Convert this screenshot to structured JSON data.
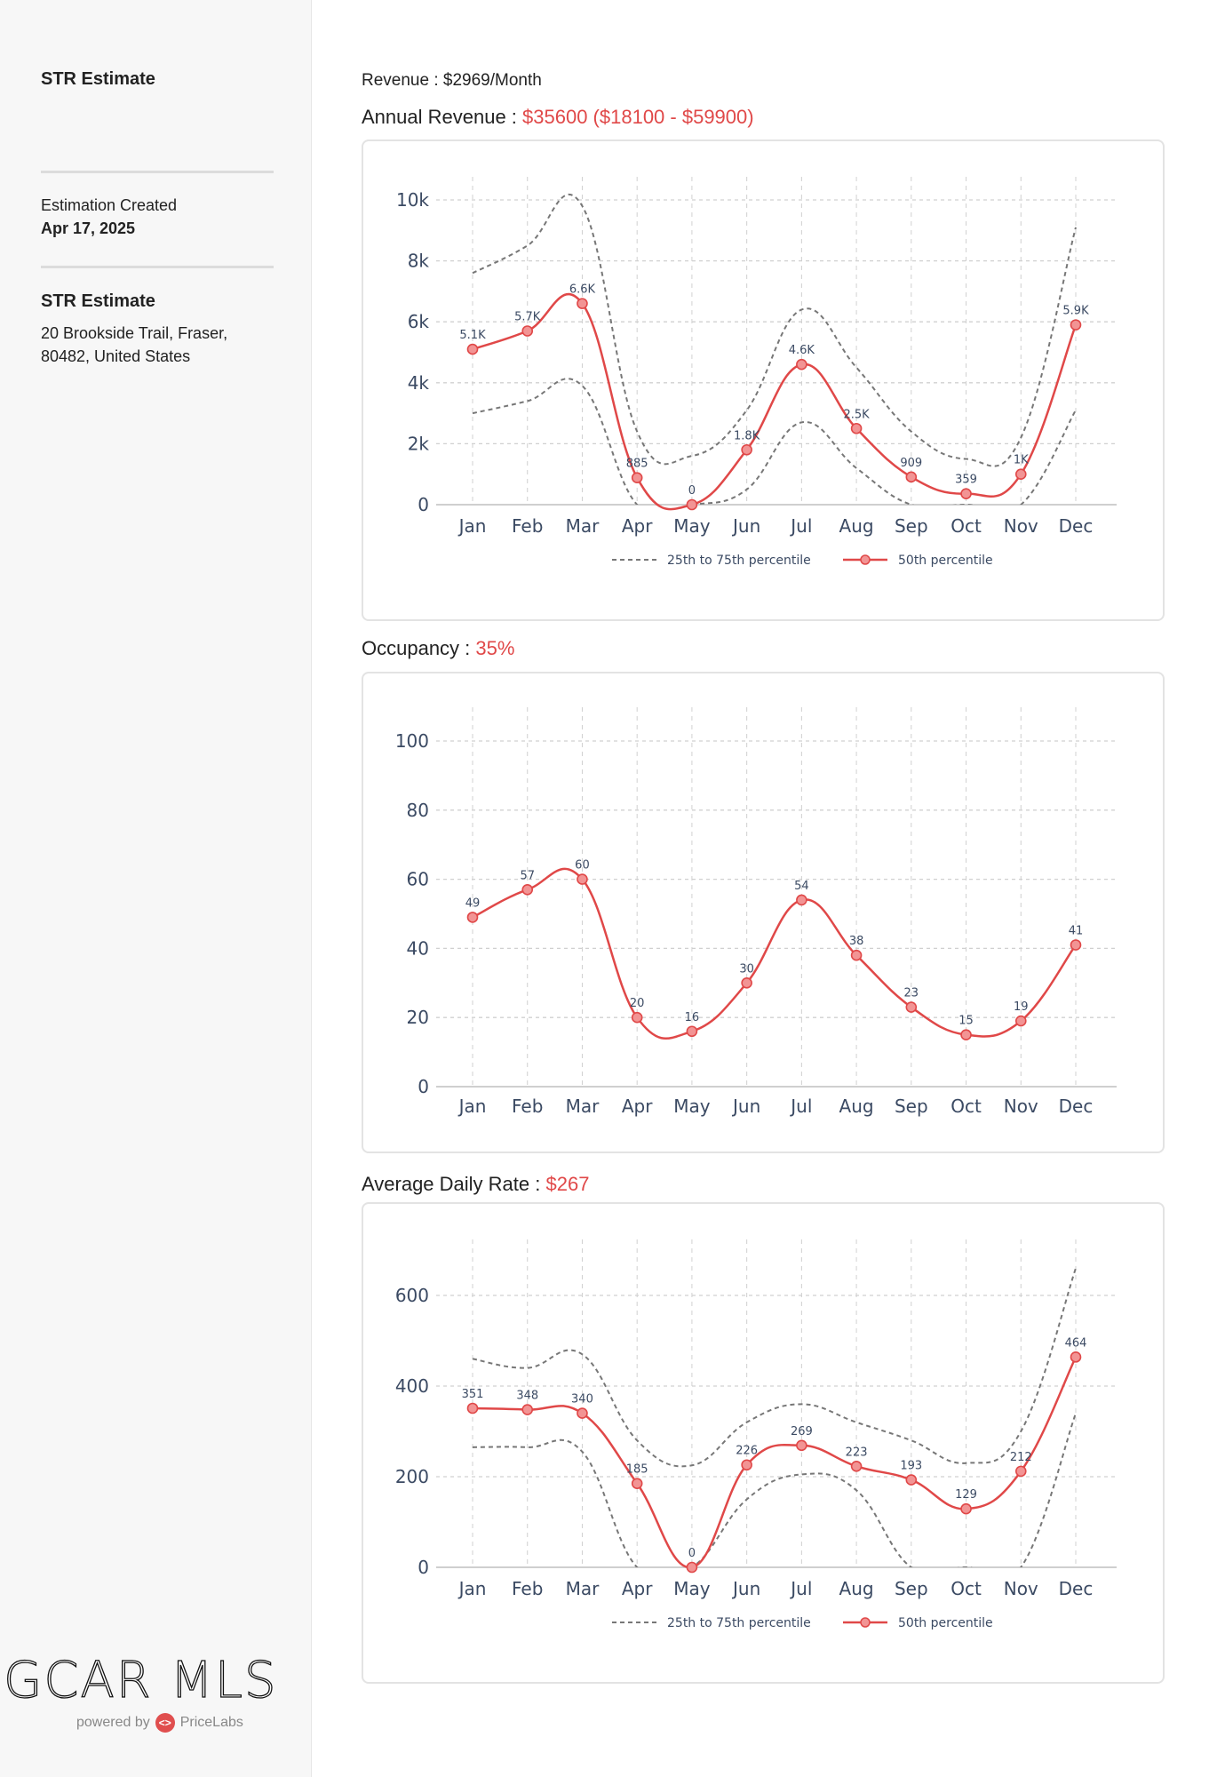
{
  "sidebar": {
    "title": "STR Estimate",
    "created_label": "Estimation Created",
    "created_date": "Apr 17, 2025",
    "property_title": "STR Estimate",
    "address_line1": "20 Brookside Trail, Fraser,",
    "address_line2": "80482, United States",
    "logo_text": "GCAR MLS",
    "powered_by": "powered by",
    "pricelabs": "PriceLabs"
  },
  "main": {
    "revenue_label": "Revenue : ",
    "revenue_value": "$2969/Month",
    "annual_label": "Annual Revenue : ",
    "annual_value": "$35600 ($18100 - $59900)",
    "occupancy_label": "Occupancy : ",
    "occupancy_value": "35%",
    "adr_label": "Average Daily Rate : ",
    "adr_value": "$267"
  },
  "colors": {
    "accent": "#e04848",
    "marker_fill": "#f29494",
    "band": "#777777",
    "grid": "#d0d0d0",
    "tick": "#3b4a63"
  },
  "chart_data": [
    {
      "type": "line",
      "title": "Annual Revenue",
      "categories": [
        "Jan",
        "Feb",
        "Mar",
        "Apr",
        "May",
        "Jun",
        "Jul",
        "Aug",
        "Sep",
        "Oct",
        "Nov",
        "Dec"
      ],
      "ylim": [
        0,
        10000
      ],
      "yticks": [
        0,
        2000,
        4000,
        6000,
        8000,
        10000
      ],
      "ytick_labels": [
        "0",
        "2k",
        "4k",
        "6k",
        "8k",
        "10k"
      ],
      "legend": [
        "25th to 75th percentile",
        "50th percentile"
      ],
      "legend_position": "bottom-center",
      "series": [
        {
          "name": "50th percentile",
          "values": [
            5100,
            5700,
            6600,
            885,
            0,
            1800,
            4600,
            2500,
            909,
            359,
            1000,
            5900
          ],
          "labels": [
            "5.1K",
            "5.7K",
            "6.6K",
            "885",
            "0",
            "1.8K",
            "4.6K",
            "2.5K",
            "909",
            "359",
            "1K",
            "5.9K"
          ]
        },
        {
          "name": "75th percentile",
          "values": [
            7600,
            8500,
            9800,
            2400,
            1600,
            3100,
            6400,
            4500,
            2400,
            1500,
            2200,
            9100
          ]
        },
        {
          "name": "25th percentile",
          "values": [
            3000,
            3400,
            3900,
            0,
            0,
            500,
            2700,
            1200,
            0,
            0,
            0,
            3100
          ]
        }
      ]
    },
    {
      "type": "line",
      "title": "Occupancy",
      "categories": [
        "Jan",
        "Feb",
        "Mar",
        "Apr",
        "May",
        "Jun",
        "Jul",
        "Aug",
        "Sep",
        "Oct",
        "Nov",
        "Dec"
      ],
      "ylim": [
        0,
        100
      ],
      "yticks": [
        0,
        20,
        40,
        60,
        80,
        100
      ],
      "ytick_labels": [
        "0",
        "20",
        "40",
        "60",
        "80",
        "100"
      ],
      "legend": [],
      "series": [
        {
          "name": "50th percentile",
          "values": [
            49,
            57,
            60,
            20,
            16,
            30,
            54,
            38,
            23,
            15,
            19,
            41
          ],
          "labels": [
            "49",
            "57",
            "60",
            "20",
            "16",
            "30",
            "54",
            "38",
            "23",
            "15",
            "19",
            "41"
          ]
        }
      ]
    },
    {
      "type": "line",
      "title": "Average Daily Rate",
      "categories": [
        "Jan",
        "Feb",
        "Mar",
        "Apr",
        "May",
        "Jun",
        "Jul",
        "Aug",
        "Sep",
        "Oct",
        "Nov",
        "Dec"
      ],
      "ylim": [
        0,
        600
      ],
      "yticks": [
        0,
        200,
        400,
        600
      ],
      "ytick_labels": [
        "0",
        "200",
        "400",
        "600"
      ],
      "legend": [
        "25th to 75th percentile",
        "50th percentile"
      ],
      "legend_position": "bottom-center",
      "series": [
        {
          "name": "50th percentile",
          "values": [
            351,
            348,
            340,
            185,
            0,
            226,
            269,
            223,
            193,
            129,
            212,
            464
          ],
          "labels": [
            "351",
            "348",
            "340",
            "185",
            "0",
            "226",
            "269",
            "223",
            "193",
            "129",
            "212",
            "464"
          ]
        },
        {
          "name": "75th percentile",
          "values": [
            460,
            440,
            470,
            280,
            225,
            320,
            360,
            320,
            280,
            230,
            300,
            660
          ]
        },
        {
          "name": "25th percentile",
          "values": [
            265,
            265,
            255,
            0,
            0,
            150,
            205,
            170,
            0,
            0,
            0,
            340
          ]
        }
      ]
    }
  ]
}
